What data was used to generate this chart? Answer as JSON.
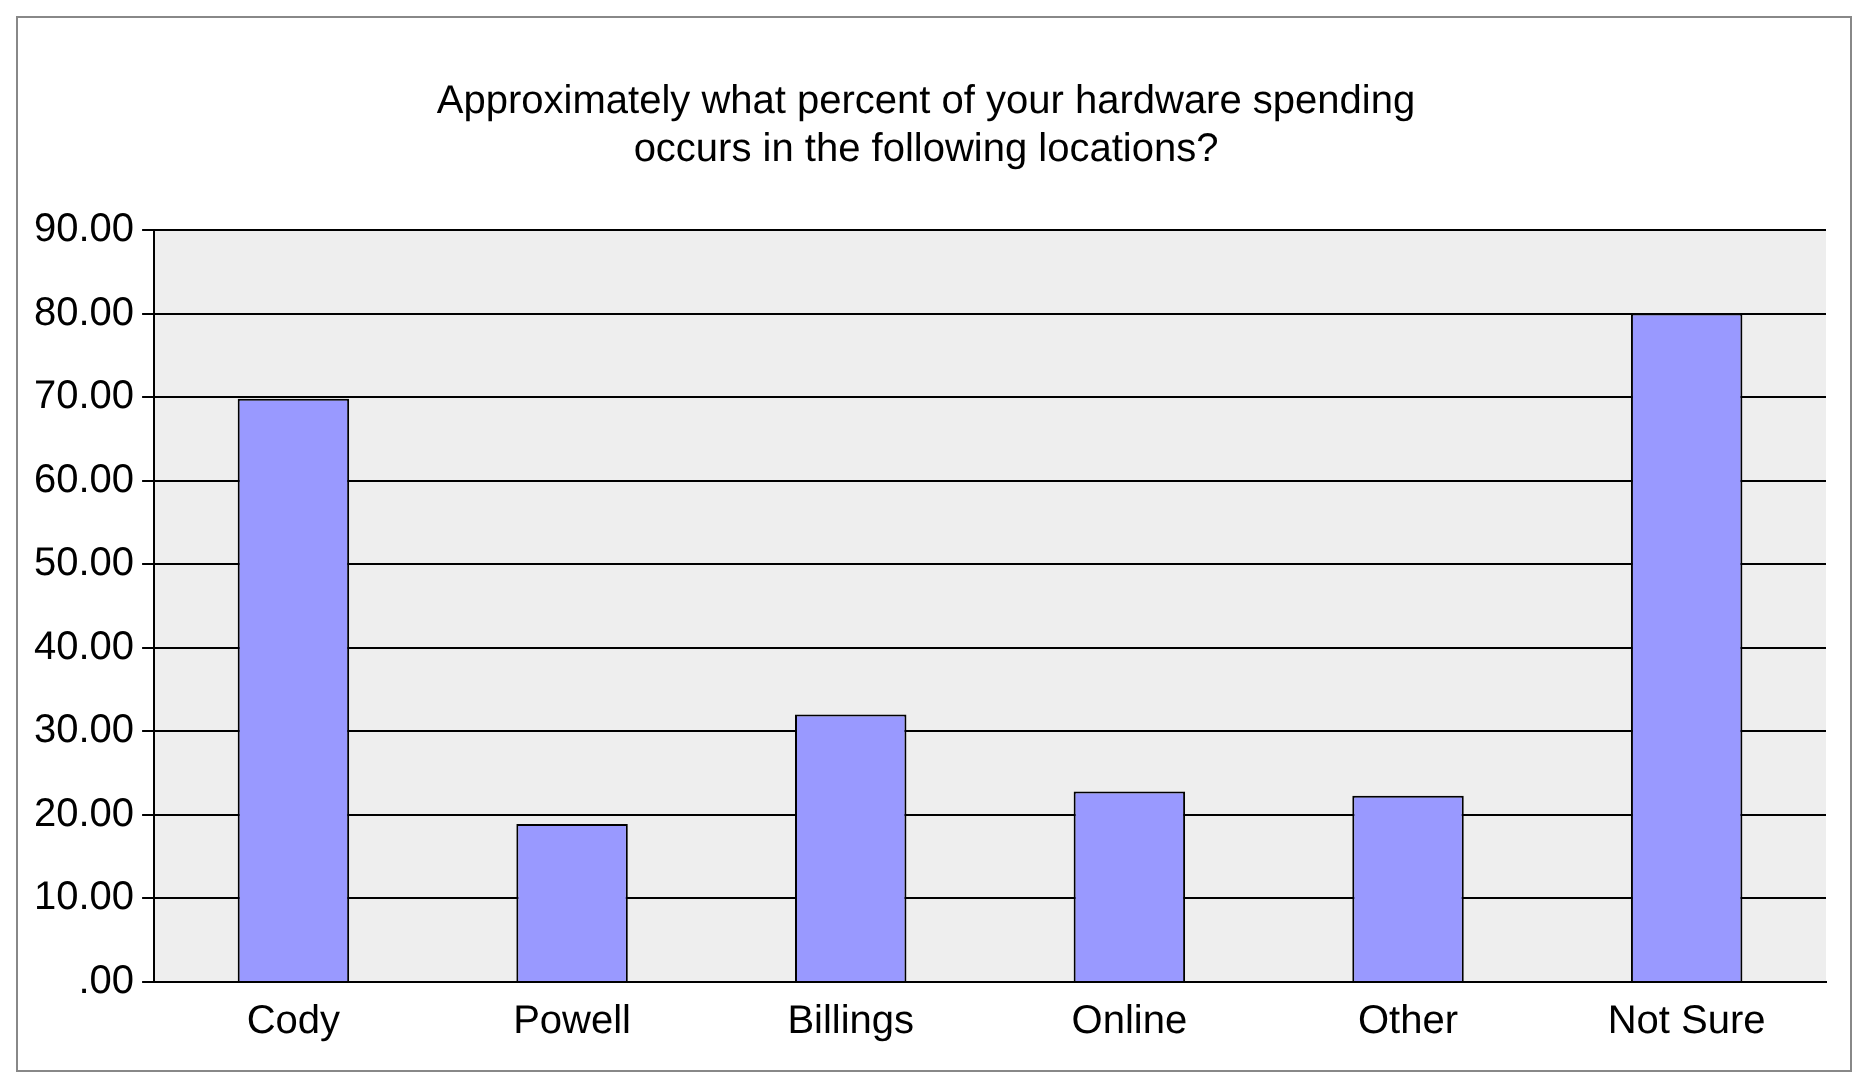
{
  "chart_data": {
    "type": "bar",
    "title": "Approximately what percent of your hardware spending occurs in the following locations?",
    "categories": [
      "Cody",
      "Powell",
      "Billings",
      "Online",
      "Other",
      "Not Sure"
    ],
    "values": [
      69.8,
      18.9,
      32,
      22.8,
      22.3,
      80
    ],
    "color": "#9999ff",
    "ylim": [
      0,
      90
    ],
    "yticks": [
      {
        "value": 0,
        "label": ".00"
      },
      {
        "value": 10,
        "label": "10.00"
      },
      {
        "value": 20,
        "label": "20.00"
      },
      {
        "value": 30,
        "label": "30.00"
      },
      {
        "value": 40,
        "label": "40.00"
      },
      {
        "value": 50,
        "label": "50.00"
      },
      {
        "value": 60,
        "label": "60.00"
      },
      {
        "value": 70,
        "label": "70.00"
      },
      {
        "value": 80,
        "label": "80.00"
      },
      {
        "value": 90,
        "label": "90.00"
      }
    ],
    "grid": "y",
    "legend": false
  }
}
